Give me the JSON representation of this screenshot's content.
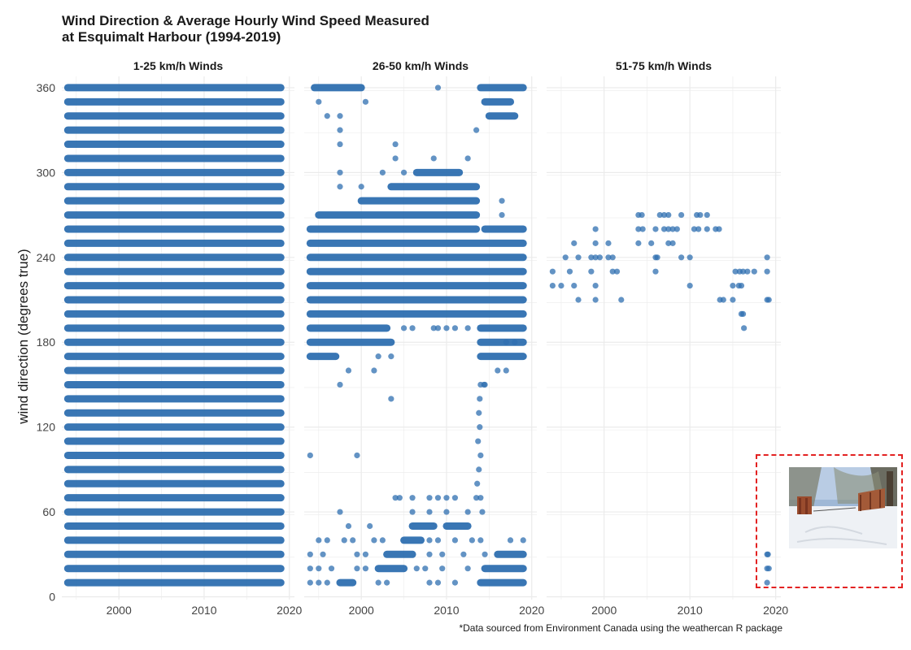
{
  "title_line1": "Wind Direction & Average Hourly Wind Speed Measured",
  "title_line2": "at Esquimalt Harbour (1994-2019)",
  "caption": "*Data sourced from Environment Canada using the weathercan R package",
  "colors": {
    "point": "#2f6fb0",
    "grid": "#ebebeb",
    "highlight_box": "#e32222"
  },
  "inset": {
    "icon": "snowy-yard-photo-icon"
  },
  "chart_data": {
    "type": "scatter",
    "ylabel": "wind direction (degrees true)",
    "xlabel": "",
    "xlim": [
      1993.3,
      2020.6
    ],
    "ylim": [
      -2,
      368
    ],
    "x_ticks": [
      2000,
      2010,
      2020
    ],
    "y_ticks": [
      0,
      60,
      120,
      180,
      240,
      300,
      360
    ],
    "grid": true,
    "panels": [
      {
        "name": "1-25 km/h Winds",
        "bands": [
          {
            "y": 10,
            "x": [
              1994,
              2019
            ]
          },
          {
            "y": 20,
            "x": [
              1994,
              2019
            ]
          },
          {
            "y": 30,
            "x": [
              1994,
              2019
            ]
          },
          {
            "y": 40,
            "x": [
              1994,
              2019
            ]
          },
          {
            "y": 50,
            "x": [
              1994,
              2019
            ]
          },
          {
            "y": 60,
            "x": [
              1994,
              2019
            ]
          },
          {
            "y": 70,
            "x": [
              1994,
              2019
            ]
          },
          {
            "y": 80,
            "x": [
              1994,
              2019
            ]
          },
          {
            "y": 90,
            "x": [
              1994,
              2019
            ]
          },
          {
            "y": 100,
            "x": [
              1994,
              2019
            ]
          },
          {
            "y": 110,
            "x": [
              1994,
              2019
            ]
          },
          {
            "y": 120,
            "x": [
              1994,
              2019
            ]
          },
          {
            "y": 130,
            "x": [
              1994,
              2019
            ]
          },
          {
            "y": 140,
            "x": [
              1994,
              2019
            ]
          },
          {
            "y": 150,
            "x": [
              1994,
              2019
            ]
          },
          {
            "y": 160,
            "x": [
              1994,
              2019
            ]
          },
          {
            "y": 170,
            "x": [
              1994,
              2019
            ]
          },
          {
            "y": 180,
            "x": [
              1994,
              2019
            ]
          },
          {
            "y": 190,
            "x": [
              1994,
              2019
            ]
          },
          {
            "y": 200,
            "x": [
              1994,
              2019
            ]
          },
          {
            "y": 210,
            "x": [
              1994,
              2019
            ]
          },
          {
            "y": 220,
            "x": [
              1994,
              2019
            ]
          },
          {
            "y": 230,
            "x": [
              1994,
              2019
            ]
          },
          {
            "y": 240,
            "x": [
              1994,
              2019
            ]
          },
          {
            "y": 250,
            "x": [
              1994,
              2019
            ]
          },
          {
            "y": 260,
            "x": [
              1994,
              2019
            ]
          },
          {
            "y": 270,
            "x": [
              1994,
              2019
            ]
          },
          {
            "y": 280,
            "x": [
              1994,
              2019
            ]
          },
          {
            "y": 290,
            "x": [
              1994,
              2019
            ]
          },
          {
            "y": 300,
            "x": [
              1994,
              2019
            ]
          },
          {
            "y": 310,
            "x": [
              1994,
              2019
            ]
          },
          {
            "y": 320,
            "x": [
              1994,
              2019
            ]
          },
          {
            "y": 330,
            "x": [
              1994,
              2019
            ]
          },
          {
            "y": 340,
            "x": [
              1994,
              2019
            ]
          },
          {
            "y": 350,
            "x": [
              1994,
              2019
            ]
          },
          {
            "y": 360,
            "x": [
              1994,
              2019
            ]
          }
        ],
        "points": []
      },
      {
        "name": "26-50 km/h Winds",
        "bands": [
          {
            "y": 10,
            "x": [
              1997.5,
              1999
            ]
          },
          {
            "y": 10,
            "x": [
              2014,
              2019
            ]
          },
          {
            "y": 20,
            "x": [
              2002,
              2005
            ]
          },
          {
            "y": 20,
            "x": [
              2014.5,
              2019
            ]
          },
          {
            "y": 30,
            "x": [
              2003,
              2006
            ]
          },
          {
            "y": 30,
            "x": [
              2016,
              2019
            ]
          },
          {
            "y": 40,
            "x": [
              2005,
              2007
            ]
          },
          {
            "y": 50,
            "x": [
              2006,
              2008.5
            ]
          },
          {
            "y": 50,
            "x": [
              2010,
              2012.5
            ]
          },
          {
            "y": 170,
            "x": [
              1994,
              1997
            ]
          },
          {
            "y": 170,
            "x": [
              2014,
              2019
            ]
          },
          {
            "y": 180,
            "x": [
              1994,
              2003.5
            ]
          },
          {
            "y": 180,
            "x": [
              2014,
              2019
            ]
          },
          {
            "y": 190,
            "x": [
              1994,
              2003
            ]
          },
          {
            "y": 190,
            "x": [
              2014,
              2019
            ]
          },
          {
            "y": 200,
            "x": [
              1994,
              2019
            ]
          },
          {
            "y": 210,
            "x": [
              1994,
              2019
            ]
          },
          {
            "y": 220,
            "x": [
              1994,
              2019
            ]
          },
          {
            "y": 230,
            "x": [
              1994,
              2019
            ]
          },
          {
            "y": 240,
            "x": [
              1994,
              2019
            ]
          },
          {
            "y": 250,
            "x": [
              1994,
              2019
            ]
          },
          {
            "y": 260,
            "x": [
              1994,
              2013.5
            ]
          },
          {
            "y": 260,
            "x": [
              2014.5,
              2019
            ]
          },
          {
            "y": 270,
            "x": [
              1995,
              2013.5
            ]
          },
          {
            "y": 280,
            "x": [
              2000,
              2013.5
            ]
          },
          {
            "y": 290,
            "x": [
              2003.5,
              2013.5
            ]
          },
          {
            "y": 300,
            "x": [
              2006.5,
              2011.5
            ]
          },
          {
            "y": 360,
            "x": [
              1994.5,
              2000
            ]
          },
          {
            "y": 360,
            "x": [
              2014,
              2019
            ]
          },
          {
            "y": 350,
            "x": [
              2014.5,
              2017.5
            ]
          },
          {
            "y": 340,
            "x": [
              2015,
              2018
            ]
          }
        ],
        "points": [
          [
            1994,
            100
          ],
          [
            1999.5,
            100
          ],
          [
            2003.5,
            140
          ],
          [
            2004,
            310
          ],
          [
            2004,
            320
          ],
          [
            2008.5,
            310
          ],
          [
            2012.5,
            310
          ],
          [
            1997.5,
            150
          ],
          [
            1998.5,
            160
          ],
          [
            2001.5,
            160
          ],
          [
            2002,
            170
          ],
          [
            2003.5,
            170
          ],
          [
            1997.5,
            330
          ],
          [
            1997.5,
            320
          ],
          [
            1995,
            350
          ],
          [
            1996,
            340
          ],
          [
            1997.5,
            340
          ],
          [
            2000.5,
            350
          ],
          [
            1997.5,
            300
          ],
          [
            2002.5,
            300
          ],
          [
            2005,
            300
          ],
          [
            2009,
            360
          ],
          [
            2013.5,
            330
          ],
          [
            2016.5,
            280
          ],
          [
            2016.5,
            270
          ],
          [
            1997.5,
            290
          ],
          [
            2000,
            290
          ],
          [
            1997.5,
            60
          ],
          [
            1998.5,
            50
          ],
          [
            2001,
            50
          ],
          [
            2004,
            70
          ],
          [
            2004.5,
            70
          ],
          [
            2006,
            70
          ],
          [
            2008,
            70
          ],
          [
            2009,
            70
          ],
          [
            2010,
            70
          ],
          [
            2011,
            70
          ],
          [
            2013.5,
            70
          ],
          [
            2006,
            60
          ],
          [
            2008,
            60
          ],
          [
            2010,
            60
          ],
          [
            2012.5,
            60
          ],
          [
            1995,
            40
          ],
          [
            1996,
            40
          ],
          [
            1998,
            40
          ],
          [
            1999,
            40
          ],
          [
            2001.5,
            40
          ],
          [
            2002.5,
            40
          ],
          [
            2008,
            40
          ],
          [
            2009,
            40
          ],
          [
            2011,
            40
          ],
          [
            2013,
            40
          ],
          [
            2014,
            40
          ],
          [
            2017.5,
            40
          ],
          [
            2019,
            40
          ],
          [
            1994,
            30
          ],
          [
            1995.5,
            30
          ],
          [
            1999.5,
            30
          ],
          [
            2000.5,
            30
          ],
          [
            2008,
            30
          ],
          [
            2009.5,
            30
          ],
          [
            2012,
            30
          ],
          [
            2014.5,
            30
          ],
          [
            1994,
            20
          ],
          [
            1995,
            20
          ],
          [
            1996.5,
            20
          ],
          [
            1999.5,
            20
          ],
          [
            2000.5,
            20
          ],
          [
            2006.5,
            20
          ],
          [
            2007.5,
            20
          ],
          [
            2009.5,
            20
          ],
          [
            2012.5,
            20
          ],
          [
            1994,
            10
          ],
          [
            1995,
            10
          ],
          [
            1996,
            10
          ],
          [
            2002,
            10
          ],
          [
            2003,
            10
          ],
          [
            2008,
            10
          ],
          [
            2009,
            10
          ],
          [
            2011,
            10
          ],
          [
            2016,
            160
          ],
          [
            2017,
            160
          ],
          [
            2014,
            150
          ],
          [
            2014.5,
            150
          ],
          [
            2013.8,
            130
          ],
          [
            2013.9,
            120
          ],
          [
            2013.7,
            110
          ],
          [
            2014,
            100
          ],
          [
            2013.8,
            90
          ],
          [
            2013.6,
            80
          ],
          [
            2014,
            70
          ],
          [
            2014.2,
            60
          ],
          [
            2013.9,
            140
          ],
          [
            2014.4,
            150
          ],
          [
            2005,
            190
          ],
          [
            2006,
            190
          ],
          [
            2008.5,
            190
          ],
          [
            2009,
            190
          ],
          [
            2010,
            190
          ],
          [
            2011,
            190
          ],
          [
            2012.5,
            190
          ],
          [
            2017,
            180
          ],
          [
            2018,
            180
          ]
        ]
      },
      {
        "name": "51-75 km/h Winds",
        "bands": [],
        "points": [
          [
            1994,
            220
          ],
          [
            1995,
            220
          ],
          [
            1996.5,
            220
          ],
          [
            1999,
            220
          ],
          [
            2010,
            220
          ],
          [
            2015,
            220
          ],
          [
            2015.7,
            220
          ],
          [
            2016,
            220
          ],
          [
            1994,
            230
          ],
          [
            1996,
            230
          ],
          [
            1998.5,
            230
          ],
          [
            2001,
            230
          ],
          [
            2001.5,
            230
          ],
          [
            2006,
            230
          ],
          [
            2015.3,
            230
          ],
          [
            2015.8,
            230
          ],
          [
            2016.2,
            230
          ],
          [
            2016.7,
            230
          ],
          [
            2017.5,
            230
          ],
          [
            2019,
            230
          ],
          [
            1995.5,
            240
          ],
          [
            1997,
            240
          ],
          [
            1998.5,
            240
          ],
          [
            1999,
            240
          ],
          [
            1999.5,
            240
          ],
          [
            2000.5,
            240
          ],
          [
            2001,
            240
          ],
          [
            2006,
            240
          ],
          [
            2006.2,
            240
          ],
          [
            2009,
            240
          ],
          [
            2010,
            240
          ],
          [
            2019,
            240
          ],
          [
            1996.5,
            250
          ],
          [
            1999,
            250
          ],
          [
            2000.5,
            250
          ],
          [
            2004,
            250
          ],
          [
            2005.5,
            250
          ],
          [
            2007.5,
            250
          ],
          [
            2008,
            250
          ],
          [
            1999,
            260
          ],
          [
            2004,
            260
          ],
          [
            2004.5,
            260
          ],
          [
            2006,
            260
          ],
          [
            2007,
            260
          ],
          [
            2007.5,
            260
          ],
          [
            2008,
            260
          ],
          [
            2008.5,
            260
          ],
          [
            2010.5,
            260
          ],
          [
            2011,
            260
          ],
          [
            2012,
            260
          ],
          [
            2013,
            260
          ],
          [
            2013.4,
            260
          ],
          [
            2004,
            270
          ],
          [
            2004.4,
            270
          ],
          [
            2006.5,
            270
          ],
          [
            2007,
            270
          ],
          [
            2007.5,
            270
          ],
          [
            2009,
            270
          ],
          [
            2010.8,
            270
          ],
          [
            2011.2,
            270
          ],
          [
            2012,
            270
          ],
          [
            1997,
            210
          ],
          [
            1999,
            210
          ],
          [
            2002,
            210
          ],
          [
            2013.5,
            210
          ],
          [
            2013.9,
            210
          ],
          [
            2015,
            210
          ],
          [
            2019,
            210
          ],
          [
            2019.2,
            210
          ],
          [
            2016,
            200
          ],
          [
            2016.2,
            200
          ],
          [
            2016.3,
            190
          ],
          [
            2019,
            10
          ],
          [
            2019,
            20
          ],
          [
            2019.2,
            20
          ],
          [
            2019,
            30
          ],
          [
            2019.1,
            30
          ]
        ]
      }
    ]
  }
}
